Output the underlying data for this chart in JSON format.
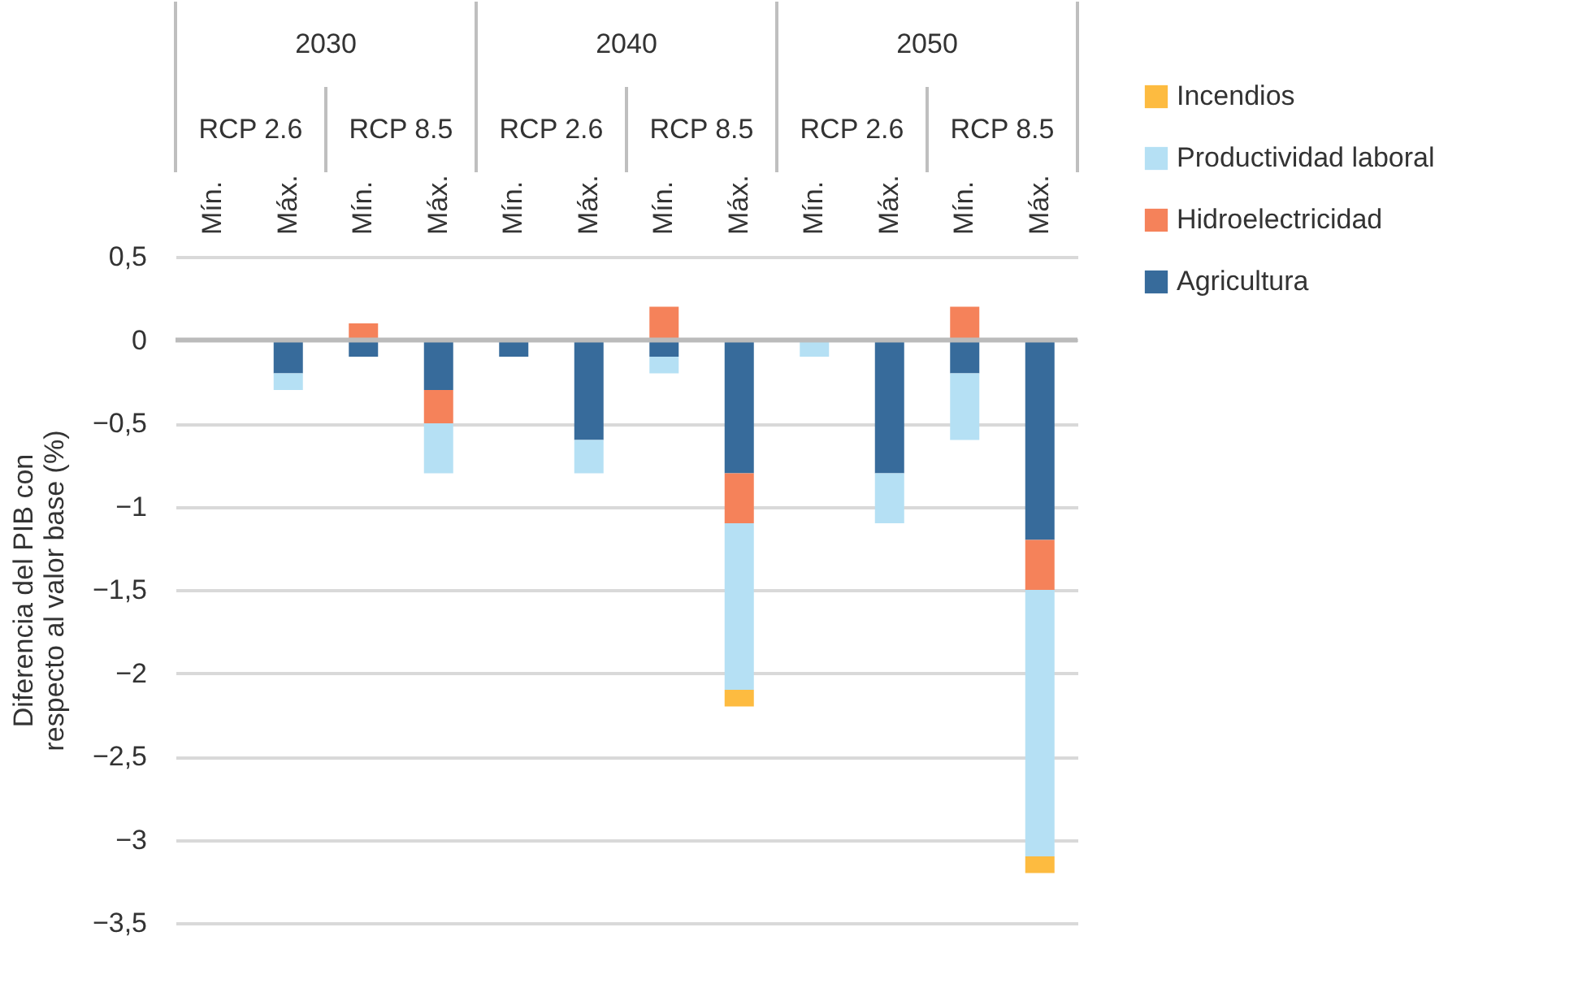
{
  "chart_data": {
    "type": "bar",
    "stacked": true,
    "ylabel": "Diferencia del PIB con respecto al valor base (%)",
    "categories": [
      "Mín.",
      "Máx.",
      "Mín.",
      "Máx.",
      "Mín.",
      "Máx.",
      "Mín.",
      "Máx.",
      "Mín.",
      "Máx.",
      "Mín.",
      "Máx."
    ],
    "annotations": [
      "2030",
      "2040",
      "2050",
      "RCP 2.6",
      "RCP 8.5",
      "RCP 2.6",
      "RCP 8.5",
      "RCP 2.6",
      "RCP 8.5"
    ],
    "series": [
      {
        "name": "Agricultura",
        "color": "#376b9b",
        "values": [
          null,
          -0.2,
          -0.1,
          -0.3,
          -0.1,
          -0.6,
          -0.1,
          -0.8,
          null,
          -0.8,
          -0.2,
          -1.2
        ]
      },
      {
        "name": "Hidroelectricidad",
        "color": "#f5825a",
        "values": [
          null,
          null,
          0.1,
          -0.2,
          null,
          null,
          0.2,
          -0.3,
          null,
          null,
          0.2,
          -0.3
        ]
      },
      {
        "name": "Productividad laboral",
        "color": "#b5e0f4",
        "values": [
          null,
          -0.1,
          null,
          -0.3,
          null,
          -0.2,
          -0.1,
          -1.0,
          -0.1,
          -0.3,
          -0.4,
          -1.6
        ]
      },
      {
        "name": "Incendios",
        "color": "#fdbb40",
        "values": [
          null,
          null,
          null,
          null,
          null,
          null,
          null,
          -0.1,
          null,
          null,
          null,
          -0.1
        ]
      }
    ],
    "ylim": [
      -3.5,
      0.5
    ],
    "yticks": [
      {
        "value": 0.5,
        "label": "0,5"
      },
      0,
      {
        "value": -0.5,
        "label": "−0,5"
      },
      {
        "value": -1,
        "label": "−1"
      },
      {
        "value": -1.5,
        "label": "−1,5"
      },
      {
        "value": -2,
        "label": "−2"
      },
      {
        "value": -2.5,
        "label": "−2,5"
      },
      {
        "value": -3,
        "label": "−3"
      },
      {
        "value": -3.5,
        "label": "−3,5"
      }
    ],
    "grid": "y",
    "legend": "right"
  }
}
